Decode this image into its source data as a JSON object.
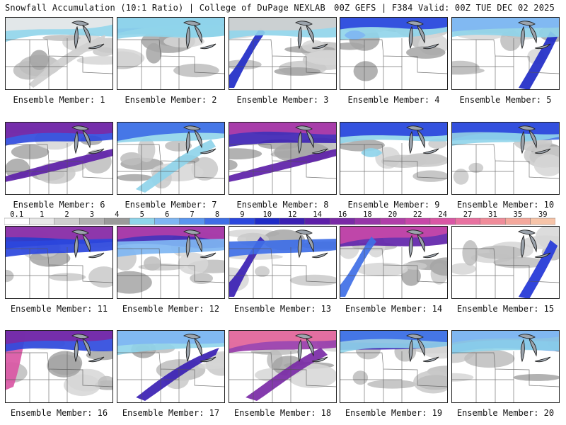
{
  "header": {
    "left": "Snowfall Accumulation (10:1 Ratio) | College of DuPage NEXLAB",
    "right": "00Z GEFS | F384 Valid: 00Z TUE DEC 02 2025"
  },
  "legend": {
    "ticks": [
      "0.1",
      "1",
      "2",
      "3",
      "4",
      "5",
      "6",
      "7",
      "8",
      "9",
      "10",
      "12",
      "14",
      "16",
      "18",
      "20",
      "22",
      "24",
      "27",
      "31",
      "35",
      "39"
    ],
    "colors": [
      "#ffffff",
      "#e8e8e8",
      "#cfcfcf",
      "#b2b2b2",
      "#9a9a9a",
      "#8fd4ea",
      "#7fb6f2",
      "#5a96ee",
      "#3f6fe6",
      "#2b47dd",
      "#1f2bc7",
      "#3a1fb3",
      "#5d1fa8",
      "#7a2aa6",
      "#9636a8",
      "#b03ea8",
      "#c748a8",
      "#d957a4",
      "#e872a0",
      "#f08c9a",
      "#f4a89c",
      "#f7c4a8",
      "#fadcbc"
    ]
  },
  "members": [
    {
      "label": "Ensemble Member: 1"
    },
    {
      "label": "Ensemble Member: 2"
    },
    {
      "label": "Ensemble Member: 3"
    },
    {
      "label": "Ensemble Member: 4"
    },
    {
      "label": "Ensemble Member: 5"
    },
    {
      "label": "Ensemble Member: 6"
    },
    {
      "label": "Ensemble Member: 7"
    },
    {
      "label": "Ensemble Member: 8"
    },
    {
      "label": "Ensemble Member: 9"
    },
    {
      "label": "Ensemble Member: 10"
    },
    {
      "label": "Ensemble Member: 11"
    },
    {
      "label": "Ensemble Member: 12"
    },
    {
      "label": "Ensemble Member: 13"
    },
    {
      "label": "Ensemble Member: 14"
    },
    {
      "label": "Ensemble Member: 15"
    },
    {
      "label": "Ensemble Member: 16"
    },
    {
      "label": "Ensemble Member: 17"
    },
    {
      "label": "Ensemble Member: 18"
    },
    {
      "label": "Ensemble Member: 19"
    },
    {
      "label": "Ensemble Member: 20"
    }
  ]
}
